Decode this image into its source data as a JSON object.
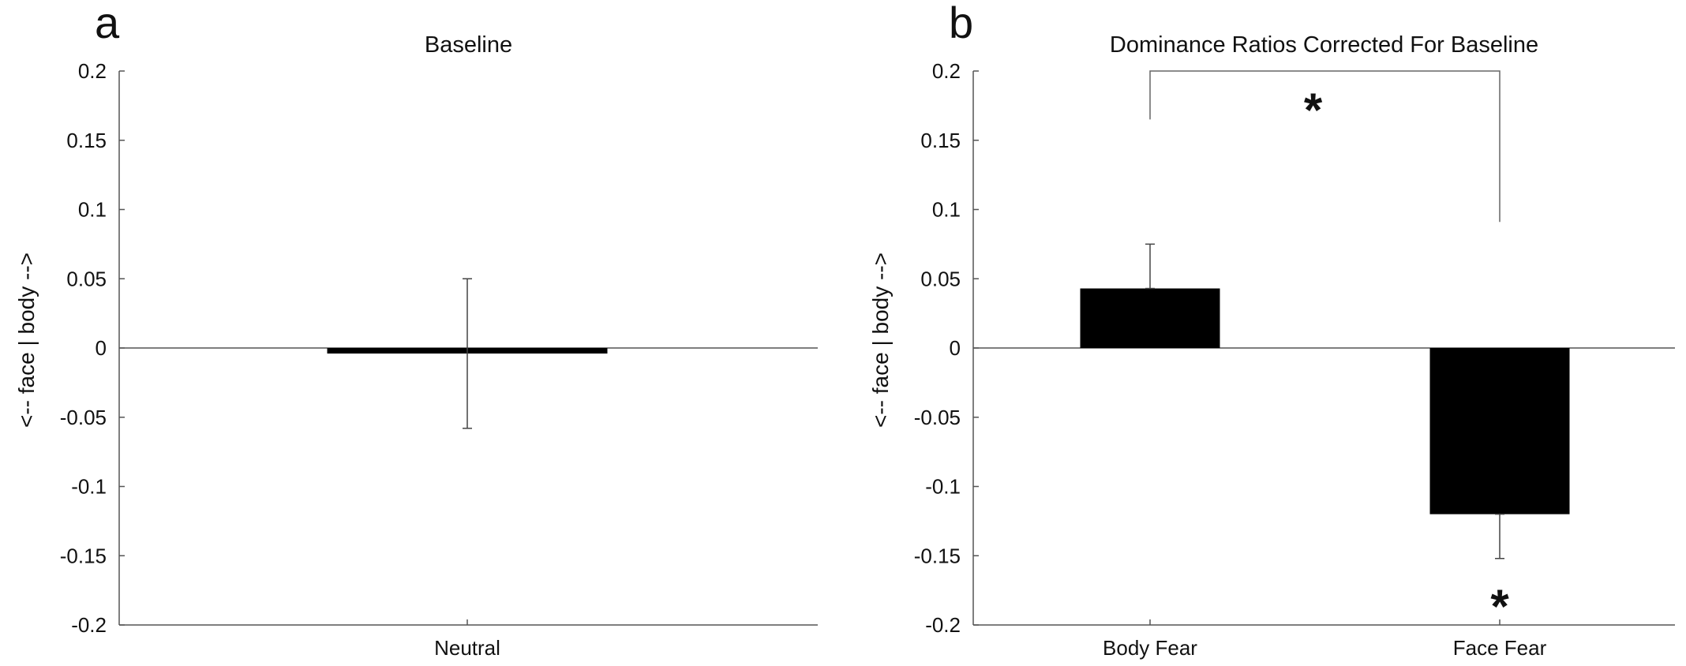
{
  "chart_data": [
    {
      "panel": "a",
      "type": "bar",
      "title": "Baseline",
      "ylabel": "<-- face | body -->",
      "ylim": [
        -0.2,
        0.2
      ],
      "yticks": [
        "0.2",
        "0.15",
        "0.1",
        "0.05",
        "0",
        "-0.05",
        "-0.1",
        "-0.15",
        "-0.2"
      ],
      "categories": [
        "Neutral"
      ],
      "values": [
        -0.004
      ],
      "errors": [
        0.054
      ],
      "bar_color": "#000000",
      "significance": []
    },
    {
      "panel": "b",
      "type": "bar",
      "title": "Dominance Ratios Corrected For Baseline",
      "ylabel": "<-- face | body -->",
      "ylim": [
        -0.2,
        0.2
      ],
      "yticks": [
        "0.2",
        "0.15",
        "0.1",
        "0.05",
        "0",
        "-0.05",
        "-0.1",
        "-0.15",
        "-0.2"
      ],
      "categories": [
        "Body Fear",
        "Face Fear"
      ],
      "values": [
        0.043,
        -0.12
      ],
      "errors": [
        0.032,
        0.032
      ],
      "bar_color": "#000000",
      "significance": [
        {
          "type": "bracket",
          "between": [
            "Body Fear",
            "Face Fear"
          ],
          "label": "*"
        },
        {
          "type": "bar",
          "category": "Face Fear",
          "label": "*"
        }
      ]
    }
  ]
}
